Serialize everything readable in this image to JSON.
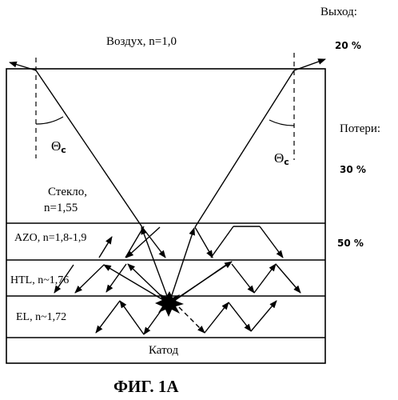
{
  "labels": {
    "output_heading": "Выход:",
    "losses_heading": "Потери:",
    "air": "Воздух, n=1,0",
    "glass_line1": "Стекло,",
    "glass_line2": "n=1,55",
    "azo": "AZO, n=1,8-1,9",
    "htl": "HTL, n~1,76",
    "el": "EL, n~1,72",
    "cathode": "Катод",
    "theta_left": "Θ",
    "theta_left_sub": "c",
    "theta_right": "Θ",
    "theta_right_sub": "c"
  },
  "percentages": {
    "output": "20 %",
    "glass_loss": "30 %",
    "waveguide_loss": "50 %"
  },
  "caption": "ФИГ. 1А"
}
